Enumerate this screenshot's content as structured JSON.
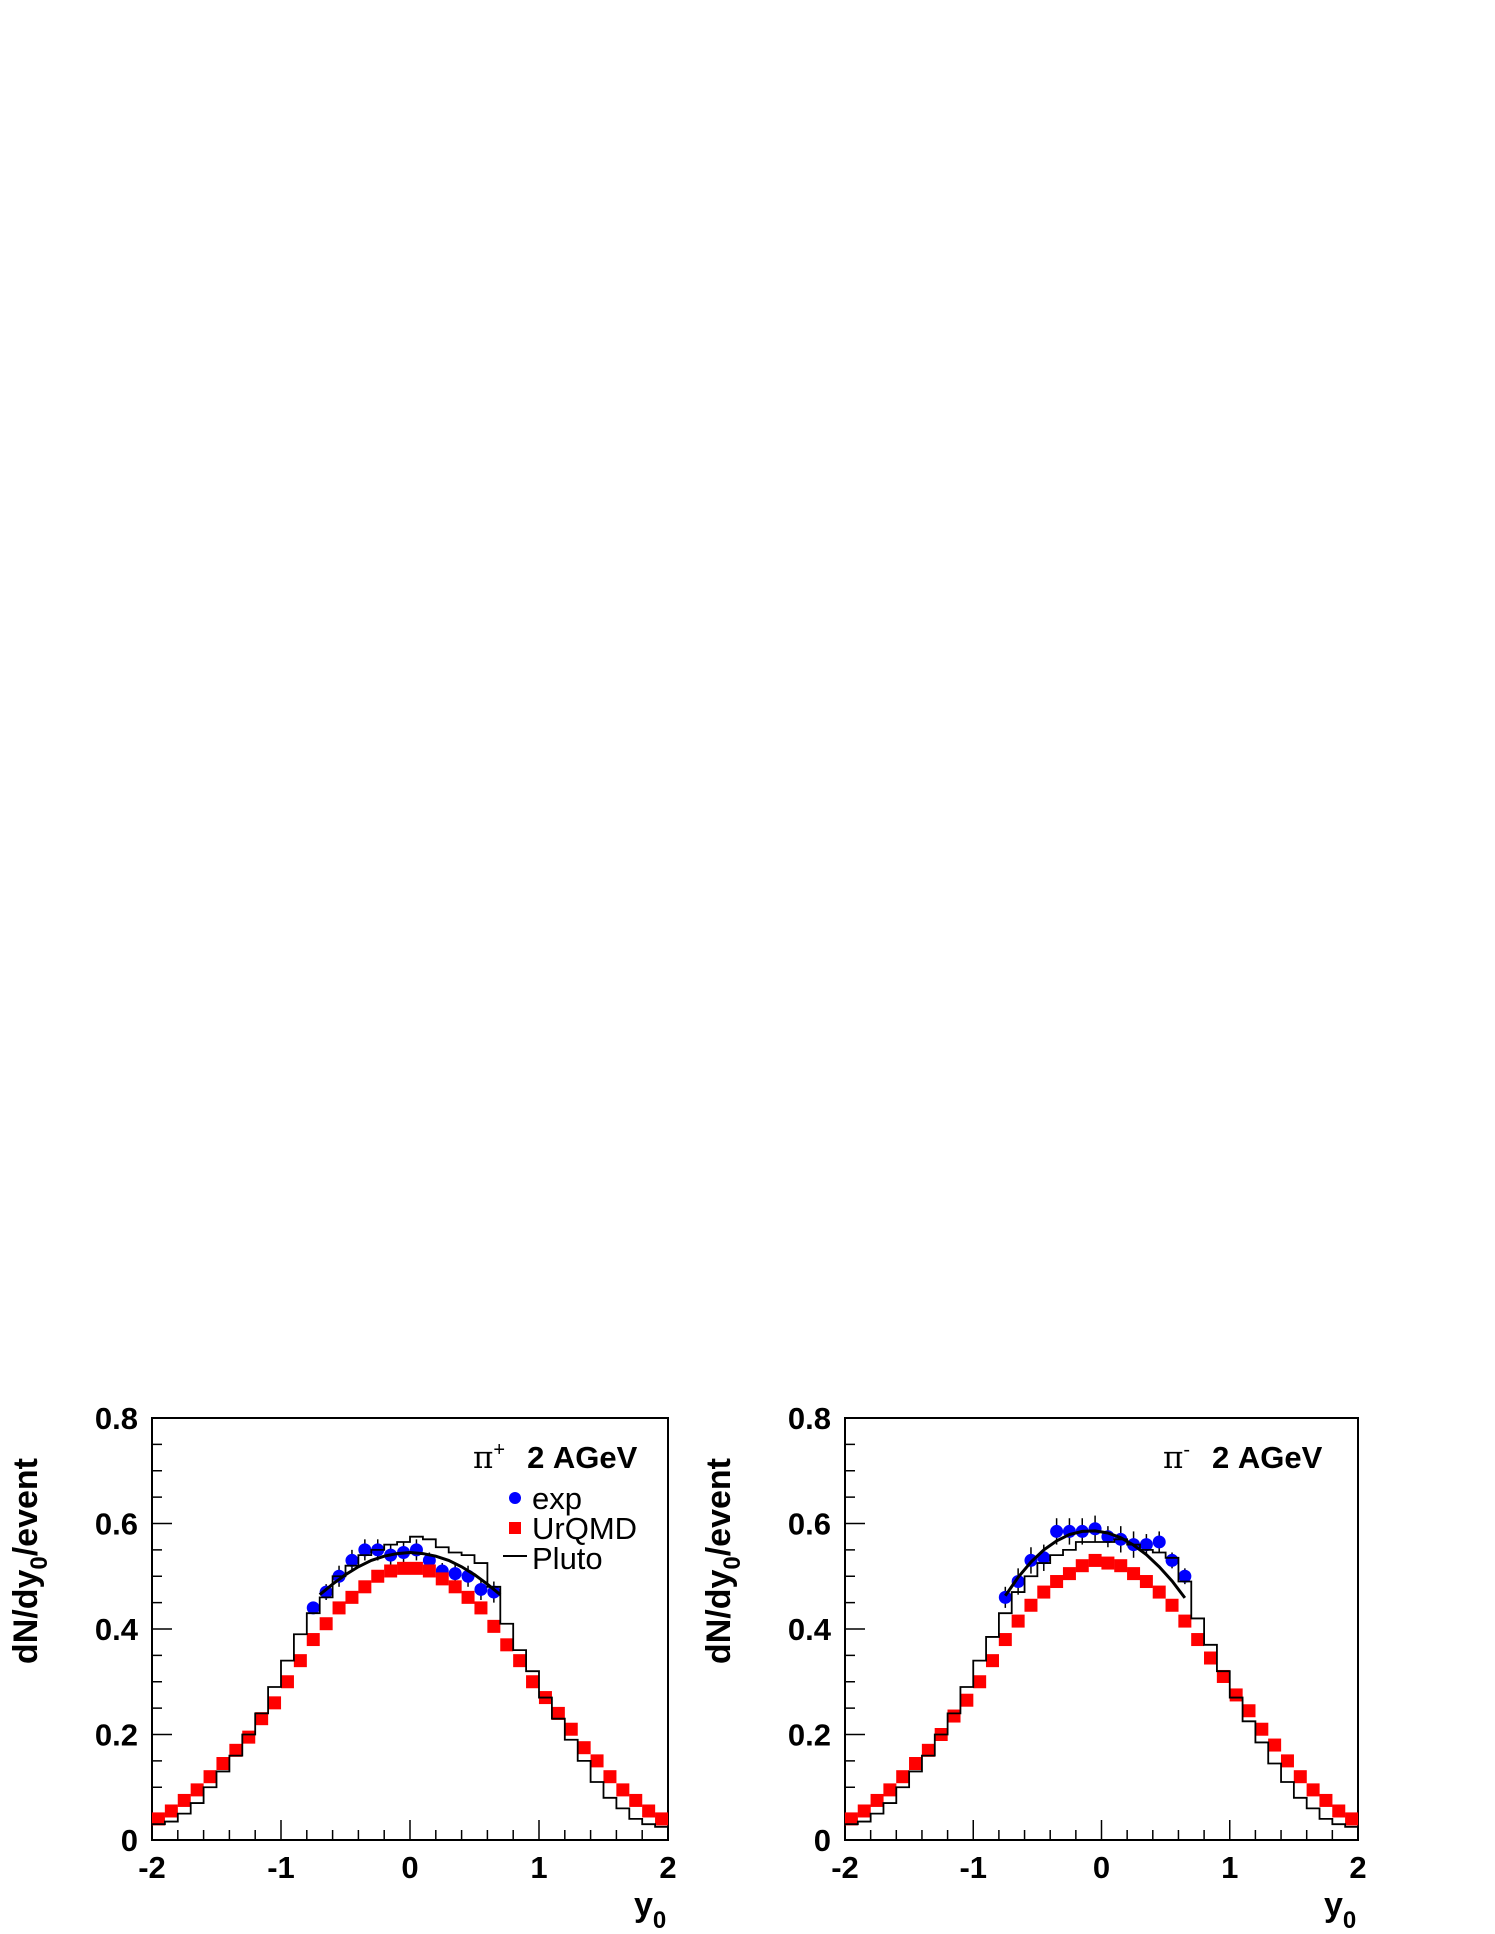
{
  "chart_data": [
    {
      "type": "scatter",
      "annotation": {
        "particle": "π",
        "charge": "+",
        "energy": "2 AGeV"
      },
      "ylabel": {
        "main": "dN/dy",
        "sub": "0",
        "tail": "/event"
      },
      "xlabel": {
        "main": "y",
        "sub": "0"
      },
      "xlim": [
        -2,
        2
      ],
      "ylim": [
        0,
        0.8
      ],
      "x_ticks": [
        "-2",
        "-1",
        "0",
        "1",
        "2"
      ],
      "y_ticks": [
        "0",
        "0.2",
        "0.4",
        "0.6",
        "0.8"
      ],
      "legend": {
        "placement": "top-right",
        "entries": [
          {
            "label": "exp",
            "color": "#0000ff"
          },
          {
            "label": "UrQMD",
            "color": "#ff0000"
          },
          {
            "label": "Pluto",
            "color": "#000000"
          }
        ]
      },
      "series": [
        {
          "name": "exp",
          "kind": "points",
          "color": "#0000ff",
          "x": [
            -0.75,
            -0.65,
            -0.55,
            -0.45,
            -0.35,
            -0.25,
            -0.15,
            -0.05,
            0.05,
            0.15,
            0.25,
            0.35,
            0.45,
            0.55,
            0.65
          ],
          "y": [
            0.44,
            0.47,
            0.5,
            0.53,
            0.55,
            0.55,
            0.54,
            0.545,
            0.55,
            0.53,
            0.51,
            0.505,
            0.5,
            0.475,
            0.47
          ],
          "err": [
            0.01,
            0.015,
            0.02,
            0.02,
            0.02,
            0.02,
            0.02,
            0.02,
            0.02,
            0.015,
            0.015,
            0.02,
            0.02,
            0.02,
            0.02
          ]
        },
        {
          "name": "UrQMD",
          "kind": "squares",
          "color": "#ff0000",
          "x": [
            -1.95,
            -1.85,
            -1.75,
            -1.65,
            -1.55,
            -1.45,
            -1.35,
            -1.25,
            -1.15,
            -1.05,
            -0.95,
            -0.85,
            -0.75,
            -0.65,
            -0.55,
            -0.45,
            -0.35,
            -0.25,
            -0.15,
            -0.05,
            0.05,
            0.15,
            0.25,
            0.35,
            0.45,
            0.55,
            0.65,
            0.75,
            0.85,
            0.95,
            1.05,
            1.15,
            1.25,
            1.35,
            1.45,
            1.55,
            1.65,
            1.75,
            1.85,
            1.95
          ],
          "y": [
            0.04,
            0.055,
            0.075,
            0.095,
            0.12,
            0.145,
            0.17,
            0.195,
            0.23,
            0.26,
            0.3,
            0.34,
            0.38,
            0.41,
            0.44,
            0.46,
            0.48,
            0.5,
            0.51,
            0.515,
            0.515,
            0.51,
            0.495,
            0.48,
            0.46,
            0.44,
            0.405,
            0.37,
            0.34,
            0.3,
            0.27,
            0.24,
            0.21,
            0.175,
            0.15,
            0.12,
            0.095,
            0.075,
            0.055,
            0.04
          ]
        },
        {
          "name": "Pluto",
          "kind": "histogram",
          "color": "#000000",
          "bin_edges": [
            -2.0,
            -1.9,
            -1.8,
            -1.7,
            -1.6,
            -1.5,
            -1.4,
            -1.3,
            -1.2,
            -1.1,
            -1.0,
            -0.9,
            -0.8,
            -0.7,
            -0.6,
            -0.5,
            -0.4,
            -0.3,
            -0.2,
            -0.1,
            0.0,
            0.1,
            0.2,
            0.3,
            0.4,
            0.5,
            0.6,
            0.7,
            0.8,
            0.9,
            1.0,
            1.1,
            1.2,
            1.3,
            1.4,
            1.5,
            1.6,
            1.7,
            1.8,
            1.9,
            2.0
          ],
          "values": [
            0.03,
            0.035,
            0.05,
            0.07,
            0.1,
            0.13,
            0.16,
            0.2,
            0.24,
            0.29,
            0.34,
            0.39,
            0.43,
            0.46,
            0.5,
            0.52,
            0.54,
            0.55,
            0.56,
            0.565,
            0.575,
            0.57,
            0.555,
            0.545,
            0.54,
            0.525,
            0.48,
            0.41,
            0.36,
            0.32,
            0.27,
            0.23,
            0.19,
            0.15,
            0.11,
            0.08,
            0.06,
            0.04,
            0.03,
            0.025
          ]
        },
        {
          "name": "fit",
          "kind": "curve",
          "color": "#000000",
          "x": [
            -0.7,
            -0.6,
            -0.5,
            -0.4,
            -0.3,
            -0.2,
            -0.1,
            0.0,
            0.1,
            0.2,
            0.3,
            0.4,
            0.5,
            0.6,
            0.7
          ],
          "y": [
            0.465,
            0.485,
            0.503,
            0.518,
            0.53,
            0.538,
            0.543,
            0.545,
            0.543,
            0.538,
            0.53,
            0.518,
            0.503,
            0.485,
            0.465
          ]
        }
      ]
    },
    {
      "type": "scatter",
      "annotation": {
        "particle": "π",
        "charge": "-",
        "energy": "2 AGeV"
      },
      "ylabel": {
        "main": "dN/dy",
        "sub": "0",
        "tail": "/event"
      },
      "xlabel": {
        "main": "y",
        "sub": "0"
      },
      "xlim": [
        -2,
        2
      ],
      "ylim": [
        0,
        0.8
      ],
      "x_ticks": [
        "-2",
        "-1",
        "0",
        "1",
        "2"
      ],
      "y_ticks": [
        "0",
        "0.2",
        "0.4",
        "0.6",
        "0.8"
      ],
      "series": [
        {
          "name": "exp",
          "kind": "points",
          "color": "#0000ff",
          "x": [
            -0.75,
            -0.65,
            -0.55,
            -0.45,
            -0.35,
            -0.25,
            -0.15,
            -0.05,
            0.05,
            0.15,
            0.25,
            0.35,
            0.45,
            0.55,
            0.65
          ],
          "y": [
            0.46,
            0.49,
            0.53,
            0.535,
            0.585,
            0.585,
            0.585,
            0.59,
            0.575,
            0.57,
            0.56,
            0.56,
            0.565,
            0.53,
            0.5
          ],
          "err": [
            0.02,
            0.025,
            0.025,
            0.025,
            0.025,
            0.025,
            0.025,
            0.025,
            0.02,
            0.025,
            0.025,
            0.02,
            0.02,
            0.015,
            0.015
          ]
        },
        {
          "name": "UrQMD",
          "kind": "squares",
          "color": "#ff0000",
          "x": [
            -1.95,
            -1.85,
            -1.75,
            -1.65,
            -1.55,
            -1.45,
            -1.35,
            -1.25,
            -1.15,
            -1.05,
            -0.95,
            -0.85,
            -0.75,
            -0.65,
            -0.55,
            -0.45,
            -0.35,
            -0.25,
            -0.15,
            -0.05,
            0.05,
            0.15,
            0.25,
            0.35,
            0.45,
            0.55,
            0.65,
            0.75,
            0.85,
            0.95,
            1.05,
            1.15,
            1.25,
            1.35,
            1.45,
            1.55,
            1.65,
            1.75,
            1.85,
            1.95
          ],
          "y": [
            0.04,
            0.055,
            0.075,
            0.095,
            0.12,
            0.145,
            0.17,
            0.2,
            0.235,
            0.265,
            0.3,
            0.34,
            0.38,
            0.415,
            0.445,
            0.47,
            0.49,
            0.505,
            0.52,
            0.53,
            0.525,
            0.52,
            0.505,
            0.49,
            0.47,
            0.445,
            0.415,
            0.38,
            0.345,
            0.31,
            0.275,
            0.245,
            0.21,
            0.18,
            0.15,
            0.12,
            0.095,
            0.075,
            0.055,
            0.04
          ]
        },
        {
          "name": "Pluto",
          "kind": "histogram",
          "color": "#000000",
          "bin_edges": [
            -2.0,
            -1.9,
            -1.8,
            -1.7,
            -1.6,
            -1.5,
            -1.4,
            -1.3,
            -1.2,
            -1.1,
            -1.0,
            -0.9,
            -0.8,
            -0.7,
            -0.6,
            -0.5,
            -0.4,
            -0.3,
            -0.2,
            -0.1,
            0.0,
            0.1,
            0.2,
            0.3,
            0.4,
            0.5,
            0.6,
            0.7,
            0.8,
            0.9,
            1.0,
            1.1,
            1.2,
            1.3,
            1.4,
            1.5,
            1.6,
            1.7,
            1.8,
            1.9,
            2.0
          ],
          "values": [
            0.03,
            0.035,
            0.05,
            0.07,
            0.1,
            0.13,
            0.16,
            0.2,
            0.24,
            0.29,
            0.34,
            0.385,
            0.43,
            0.47,
            0.5,
            0.525,
            0.54,
            0.55,
            0.565,
            0.565,
            0.565,
            0.57,
            0.56,
            0.55,
            0.545,
            0.535,
            0.49,
            0.42,
            0.37,
            0.32,
            0.27,
            0.225,
            0.185,
            0.145,
            0.11,
            0.08,
            0.06,
            0.04,
            0.03,
            0.025
          ]
        },
        {
          "name": "fit",
          "kind": "curve",
          "color": "#000000",
          "x": [
            -0.75,
            -0.65,
            -0.55,
            -0.45,
            -0.35,
            -0.25,
            -0.15,
            -0.05,
            0.05,
            0.15,
            0.25,
            0.35,
            0.45,
            0.55,
            0.65
          ],
          "y": [
            0.463,
            0.498,
            0.527,
            0.55,
            0.567,
            0.579,
            0.585,
            0.586,
            0.582,
            0.573,
            0.559,
            0.541,
            0.518,
            0.491,
            0.459
          ]
        }
      ]
    }
  ]
}
